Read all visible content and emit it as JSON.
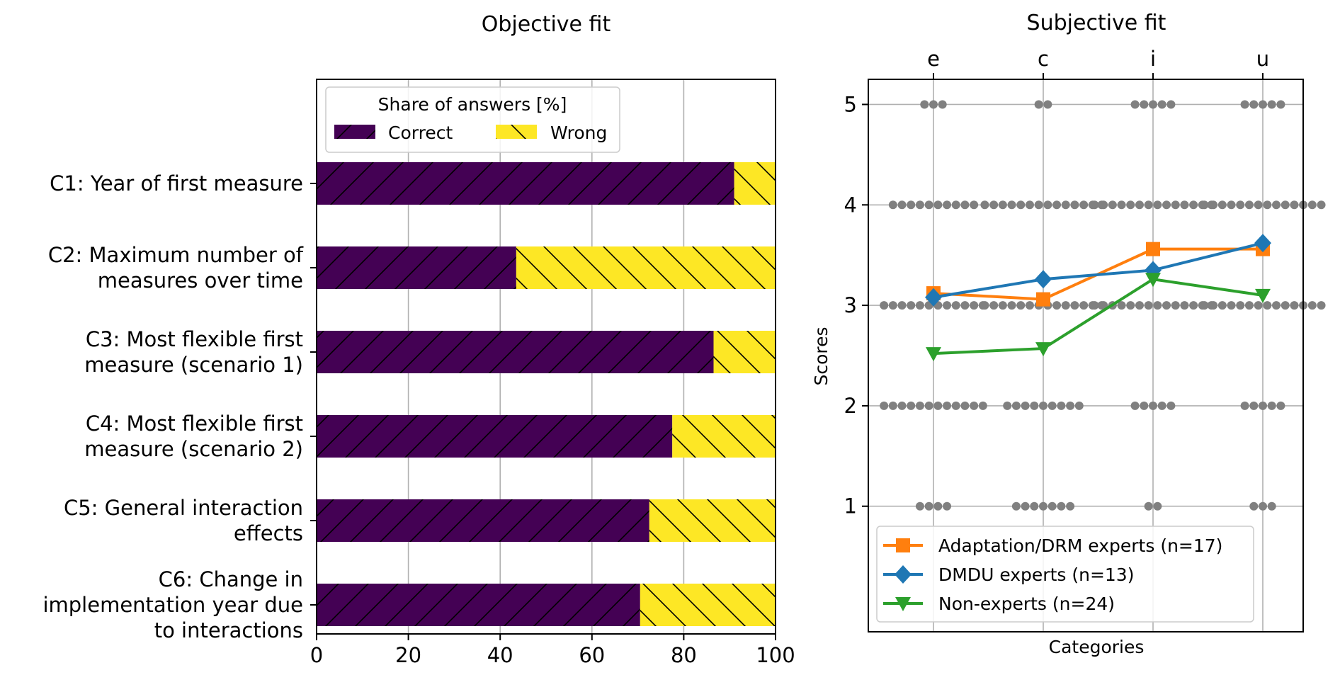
{
  "chart_data": [
    {
      "type": "bar",
      "orientation": "horizontal",
      "stacked": true,
      "title": "Objective fit",
      "categories": [
        "C1: Year of first measure",
        "C2: Maximum number of measures over time",
        "C3: Most flexible first measure (scenario 1)",
        "C4: Most flexible first measure (scenario 2)",
        "C5: General interaction effects",
        "C6: Change in implementation year due to interactions"
      ],
      "category_lines": [
        [
          "C1: Year of first measure"
        ],
        [
          "C2: Maximum number of",
          "measures over time"
        ],
        [
          "C3: Most flexible first",
          "measure (scenario 1)"
        ],
        [
          "C4: Most flexible first",
          "measure (scenario 2)"
        ],
        [
          "C5: General interaction",
          "effects"
        ],
        [
          "C6: Change in",
          "implementation year due",
          "to interactions"
        ]
      ],
      "series": [
        {
          "name": "Correct",
          "values": [
            91,
            43.5,
            86.5,
            77.5,
            72.5,
            70.5
          ],
          "color": "#440154",
          "hatch": "forward"
        },
        {
          "name": "Wrong",
          "values": [
            9,
            56.5,
            13.5,
            22.5,
            27.5,
            29.5
          ],
          "color": "#fde725",
          "hatch": "back"
        }
      ],
      "xlim": [
        0,
        100
      ],
      "xticks": [
        0,
        20,
        40,
        60,
        80,
        100
      ],
      "xlabel": "",
      "ylabel": "",
      "legend": {
        "title": "Share of answers [%]",
        "placement": "top",
        "ncol": 2
      },
      "grid": "x"
    },
    {
      "type": "line",
      "title": "Subjective fit",
      "xlabel": "Categories",
      "ylabel": "Scores",
      "categories": [
        "e",
        "c",
        "i",
        "u"
      ],
      "ylim": [
        -0.25,
        5.25
      ],
      "yticks": [
        1,
        2,
        3,
        4,
        5
      ],
      "grid": true,
      "legend_placement": "lower-left",
      "series": [
        {
          "name": "Adaptation/DRM experts (n=17)",
          "values": [
            3.12,
            3.06,
            3.56,
            3.56
          ],
          "color": "#ff7f0e",
          "marker": "square"
        },
        {
          "name": "DMDU experts (n=13)",
          "values": [
            3.08,
            3.26,
            3.35,
            3.62
          ],
          "color": "#1f77b4",
          "marker": "diamond"
        },
        {
          "name": "Non-experts  (n=24)",
          "values": [
            2.52,
            2.57,
            3.26,
            3.1
          ],
          "color": "#2ca02c",
          "marker": "triangle-down"
        }
      ],
      "individual_scores": {
        "color": "#808080",
        "counts": {
          "e": {
            "1": 4,
            "2": 12,
            "3": 12,
            "4": 10,
            "5": 3
          },
          "c": {
            "1": 7,
            "2": 9,
            "3": 14,
            "4": 14,
            "5": 2
          },
          "i": {
            "1": 2,
            "2": 5,
            "3": 14,
            "4": 14,
            "5": 5
          },
          "u": {
            "1": 3,
            "2": 5,
            "3": 14,
            "4": 14,
            "5": 5
          }
        }
      }
    }
  ]
}
